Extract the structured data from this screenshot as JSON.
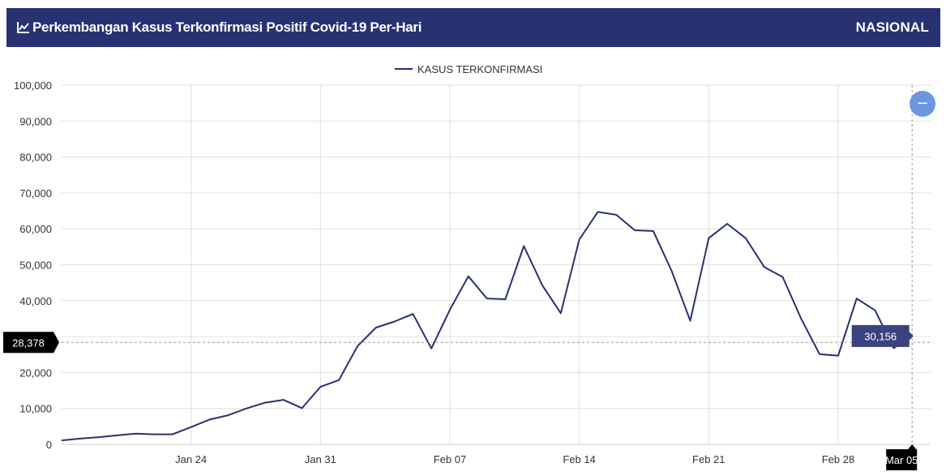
{
  "header": {
    "title": "Perkembangan Kasus Terkonfirmasi Positif Covid-19 Per-Hari",
    "region": "NASIONAL",
    "icon": "line-chart-icon"
  },
  "colors": {
    "header_bg": "#283172",
    "series": "#283172",
    "grid": "#e0e0e0",
    "tooltip_bg": "#3b4280",
    "crosshair_label_bg": "#000000",
    "zoom_button": "#6c97e0"
  },
  "zoom_button": {
    "icon": "minus-icon",
    "label": "−"
  },
  "chart_data": {
    "type": "line",
    "legend": "top-center",
    "grid": true,
    "ylim": [
      0,
      100000
    ],
    "yticks": [
      "0",
      "10,000",
      "20,000",
      "30,000",
      "40,000",
      "50,000",
      "60,000",
      "70,000",
      "80,000",
      "90,000",
      "100,000"
    ],
    "xticks": [
      {
        "day": 24,
        "label": "Jan 24"
      },
      {
        "day": 31,
        "label": "Jan 31"
      },
      {
        "day": 38,
        "label": "Feb 07"
      },
      {
        "day": 45,
        "label": "Feb 14"
      },
      {
        "day": 52,
        "label": "Feb 21"
      },
      {
        "day": 59,
        "label": "Feb 28"
      }
    ],
    "xlim": [
      17,
      64
    ],
    "series": [
      {
        "name": "KASUS TERKONFIRMASI",
        "x": [
          17,
          18,
          19,
          20,
          21,
          22,
          23,
          24,
          25,
          26,
          27,
          28,
          29,
          30,
          31,
          32,
          33,
          34,
          35,
          36,
          37,
          38,
          39,
          40,
          41,
          42,
          43,
          44,
          45,
          46,
          47,
          48,
          49,
          50,
          51,
          52,
          53,
          54,
          55,
          56,
          57,
          58,
          59,
          60,
          61,
          62,
          63
        ],
        "values": [
          1100,
          1600,
          2000,
          2500,
          3000,
          2800,
          2800,
          4800,
          6900,
          8100,
          10000,
          11600,
          12400,
          10100,
          16000,
          17900,
          27300,
          32500,
          34200,
          36300,
          26700,
          37500,
          46800,
          40600,
          40400,
          55200,
          44300,
          36500,
          57000,
          64700,
          63900,
          59600,
          59400,
          48200,
          34400,
          57400,
          61400,
          57400,
          49400,
          46600,
          35000,
          25100,
          24700,
          40600,
          37300,
          26800,
          30156
        ]
      }
    ],
    "crosshair": {
      "y_label": "28,378",
      "x_label": "Mar 05",
      "tooltip": "30,156"
    }
  }
}
